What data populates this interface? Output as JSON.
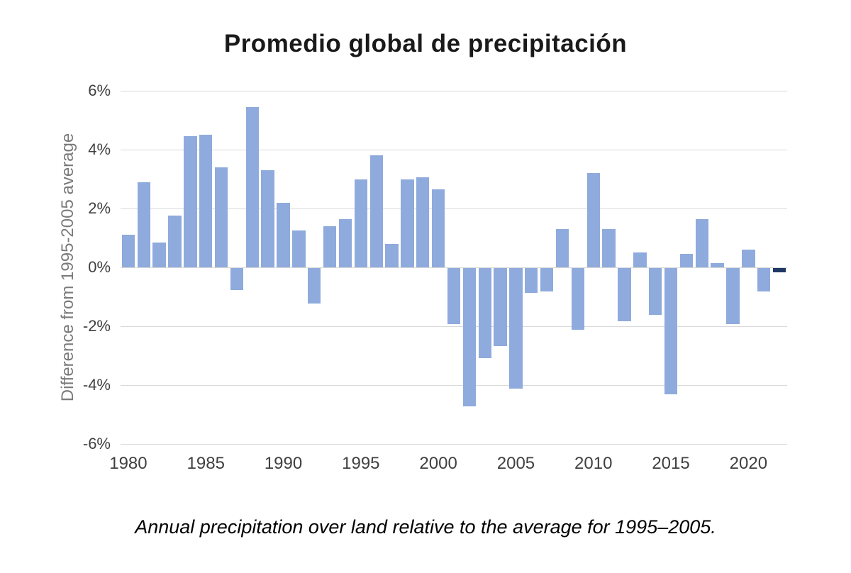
{
  "chart_data": {
    "type": "bar",
    "title": "Promedio global de precipitación",
    "ylabel": "Difference from 1995-2005 average",
    "xlabel": "",
    "caption": "Annual precipitation over land relative to the average for 1995–2005.",
    "ylim": [
      -6,
      6
    ],
    "ytick_step": 2,
    "ytick_labels": [
      "6%",
      "4%",
      "2%",
      "0%",
      "-2%",
      "-4%",
      "-6%"
    ],
    "xtick_labels": [
      "1980",
      "1985",
      "1990",
      "1995",
      "2000",
      "2005",
      "2010",
      "2015",
      "2020"
    ],
    "grid": true,
    "gridline_color": "#d9d9d9",
    "bar_color": "#8FAADC",
    "highlight_year": 2022,
    "highlight_color": "#1F3864",
    "years": [
      1980,
      1981,
      1982,
      1983,
      1984,
      1985,
      1986,
      1987,
      1988,
      1989,
      1990,
      1991,
      1992,
      1993,
      1994,
      1995,
      1996,
      1997,
      1998,
      1999,
      2000,
      2001,
      2002,
      2003,
      2004,
      2005,
      2006,
      2007,
      2008,
      2009,
      2010,
      2011,
      2012,
      2013,
      2014,
      2015,
      2016,
      2017,
      2018,
      2019,
      2020,
      2021,
      2022
    ],
    "values": [
      1.1,
      2.9,
      0.85,
      1.75,
      4.45,
      4.5,
      3.4,
      -0.75,
      5.45,
      3.3,
      2.2,
      1.25,
      -1.2,
      1.4,
      1.65,
      3.0,
      3.8,
      0.8,
      3.0,
      3.05,
      2.65,
      -1.9,
      -4.7,
      -3.05,
      -2.65,
      -4.1,
      -0.85,
      -0.8,
      1.3,
      -2.1,
      3.2,
      1.3,
      -1.8,
      0.5,
      -1.6,
      -4.3,
      0.45,
      1.65,
      0.15,
      -1.9,
      0.6,
      -0.8,
      -0.15
    ]
  }
}
